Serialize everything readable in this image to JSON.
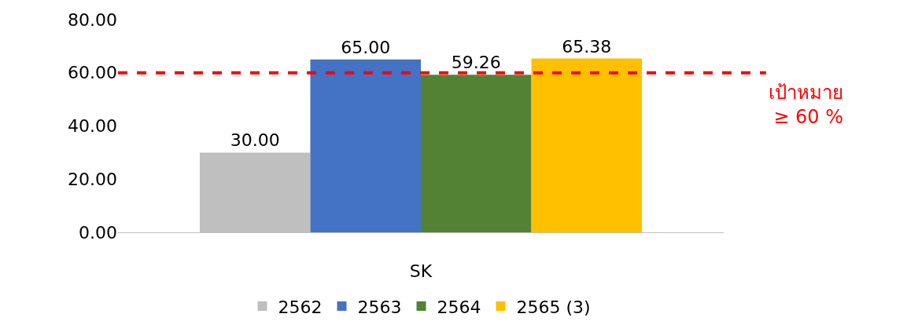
{
  "chart_data": {
    "type": "bar",
    "categories": [
      "SK"
    ],
    "series": [
      {
        "name": "2562",
        "color": "#bfbfbf",
        "values": [
          30.0
        ],
        "value_labels": [
          "30.00"
        ]
      },
      {
        "name": "2563",
        "color": "#4472c4",
        "values": [
          65.0
        ],
        "value_labels": [
          "65.00"
        ]
      },
      {
        "name": "2564",
        "color": "#548235",
        "values": [
          59.26
        ],
        "value_labels": [
          "59.26"
        ]
      },
      {
        "name": "2565 (3)",
        "color": "#ffc000",
        "values": [
          65.38
        ],
        "value_labels": [
          "65.38"
        ]
      }
    ],
    "ylim": [
      0,
      80
    ],
    "yticks": [
      {
        "value": 0,
        "label": "0.00"
      },
      {
        "value": 20,
        "label": "20.00"
      },
      {
        "value": 40,
        "label": "40.00"
      },
      {
        "value": 60,
        "label": "60.00"
      },
      {
        "value": 80,
        "label": "80.00"
      }
    ],
    "ref_lines": [
      {
        "axis": "y",
        "value": 60,
        "label": "เป้าหมาย\n≥ 60 %",
        "color": "#ff0000",
        "line_style": "dashed"
      }
    ],
    "legend": "bottom"
  }
}
